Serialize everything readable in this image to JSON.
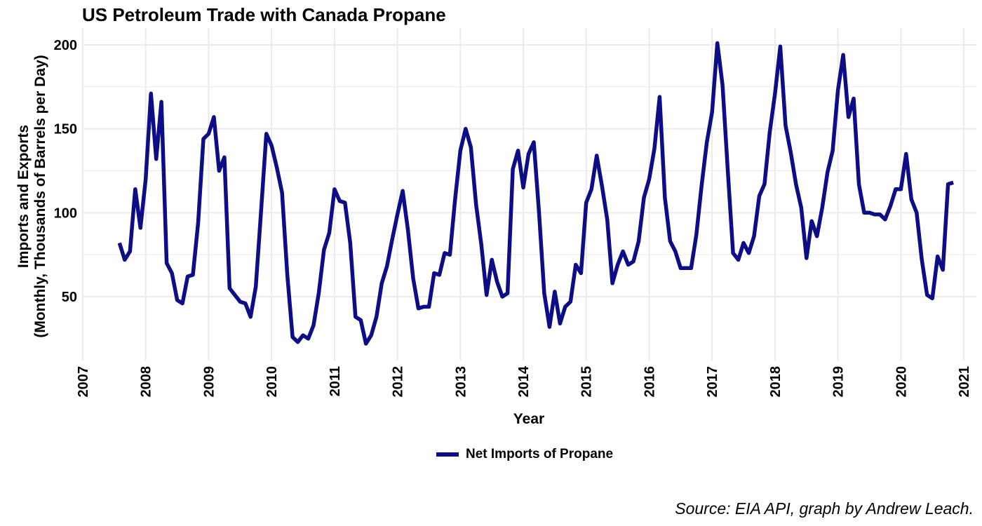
{
  "chart_data": {
    "type": "line",
    "title": "US Petroleum Trade with Canada Propane",
    "xlabel": "Year",
    "ylabel_line1": "Imports and Exports",
    "ylabel_line2": "(Monthly, Thousands of Barrels per Day)",
    "caption": "Source: EIA API, graph by Andrew Leach.",
    "legend_position": "bottom",
    "grid": true,
    "xlim": [
      2007,
      2021.2
    ],
    "ylim": [
      12,
      210
    ],
    "x_ticks": [
      "2007",
      "2008",
      "2009",
      "2010",
      "2011",
      "2012",
      "2013",
      "2014",
      "2015",
      "2016",
      "2017",
      "2018",
      "2019",
      "2020",
      "2021"
    ],
    "y_ticks": [
      "50",
      "100",
      "150",
      "200"
    ],
    "colors": {
      "series": "#0d0d87",
      "grid": "#ebebeb"
    },
    "series": [
      {
        "name": "Net Imports of Propane",
        "start": "2007-08",
        "values": [
          82,
          72,
          77,
          114,
          91,
          120,
          171,
          132,
          166,
          70,
          64,
          48,
          46,
          62,
          63,
          94,
          144,
          147,
          157,
          125,
          133,
          55,
          51,
          47,
          46,
          38,
          56,
          101,
          147,
          140,
          127,
          112,
          63,
          26,
          23,
          27,
          25,
          33,
          52,
          78,
          88,
          114,
          107,
          106,
          82,
          38,
          36,
          22,
          27,
          38,
          58,
          68,
          84,
          99,
          113,
          90,
          61,
          43,
          44,
          44,
          64,
          63,
          76,
          75,
          108,
          137,
          150,
          139,
          105,
          81,
          51,
          72,
          59,
          50,
          52,
          126,
          137,
          115,
          135,
          142,
          100,
          52,
          32,
          53,
          34,
          44,
          47,
          69,
          64,
          106,
          114,
          134,
          116,
          96,
          58,
          69,
          77,
          69,
          71,
          83,
          109,
          120,
          138,
          169,
          109,
          83,
          77,
          67,
          67,
          67,
          87,
          116,
          142,
          160,
          201,
          176,
          125,
          76,
          72,
          82,
          76,
          86,
          110,
          117,
          148,
          171,
          199,
          152,
          136,
          117,
          103,
          73,
          95,
          86,
          103,
          124,
          137,
          173,
          194,
          157,
          168,
          117,
          100,
          100,
          99,
          99,
          96,
          104,
          114,
          114,
          135,
          108,
          100,
          72,
          51,
          49,
          74,
          66,
          117,
          118
        ]
      }
    ]
  }
}
